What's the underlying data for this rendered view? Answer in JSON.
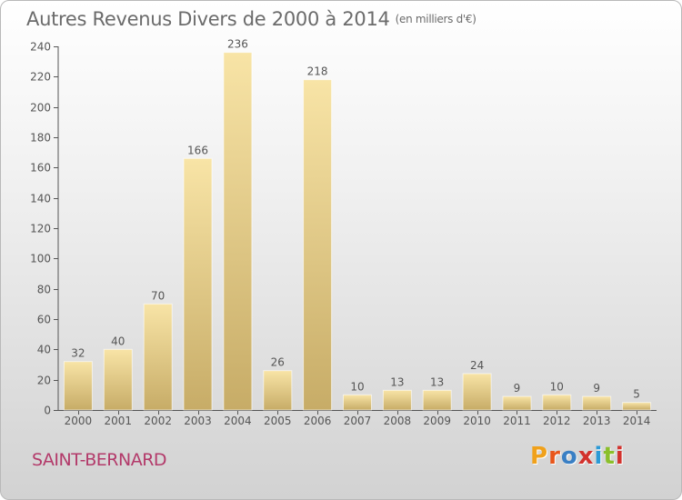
{
  "header": {
    "title": "Autres Revenus Divers de 2000 à 2014",
    "unit": "(en milliers d'€)"
  },
  "footer": {
    "location": "SAINT-BERNARD",
    "brand": "Proxiti"
  },
  "colors": {
    "bar_top": "#f8e4a6",
    "bar_bottom": "#c7ac67",
    "axis": "#555555",
    "text": "#555555",
    "location": "#b33a6a",
    "brand_letters": [
      "#f0a11b",
      "#e8561b",
      "#3a7fc4",
      "#d2322d",
      "#2c9ad6",
      "#8bbf2b",
      "#d2322d"
    ]
  },
  "chart_data": {
    "type": "bar",
    "title": "Autres Revenus Divers de 2000 à 2014",
    "subtitle": "(en milliers d'€)",
    "categories": [
      "2000",
      "2001",
      "2002",
      "2003",
      "2004",
      "2005",
      "2006",
      "2007",
      "2008",
      "2009",
      "2010",
      "2011",
      "2012",
      "2013",
      "2014"
    ],
    "values": [
      32,
      40,
      70,
      166,
      236,
      26,
      218,
      10,
      13,
      13,
      24,
      9,
      10,
      9,
      5
    ],
    "ylim": [
      0,
      240
    ],
    "yticks": [
      0,
      20,
      40,
      60,
      80,
      100,
      120,
      140,
      160,
      180,
      200,
      220,
      240
    ],
    "grid": false,
    "legend": "none"
  }
}
